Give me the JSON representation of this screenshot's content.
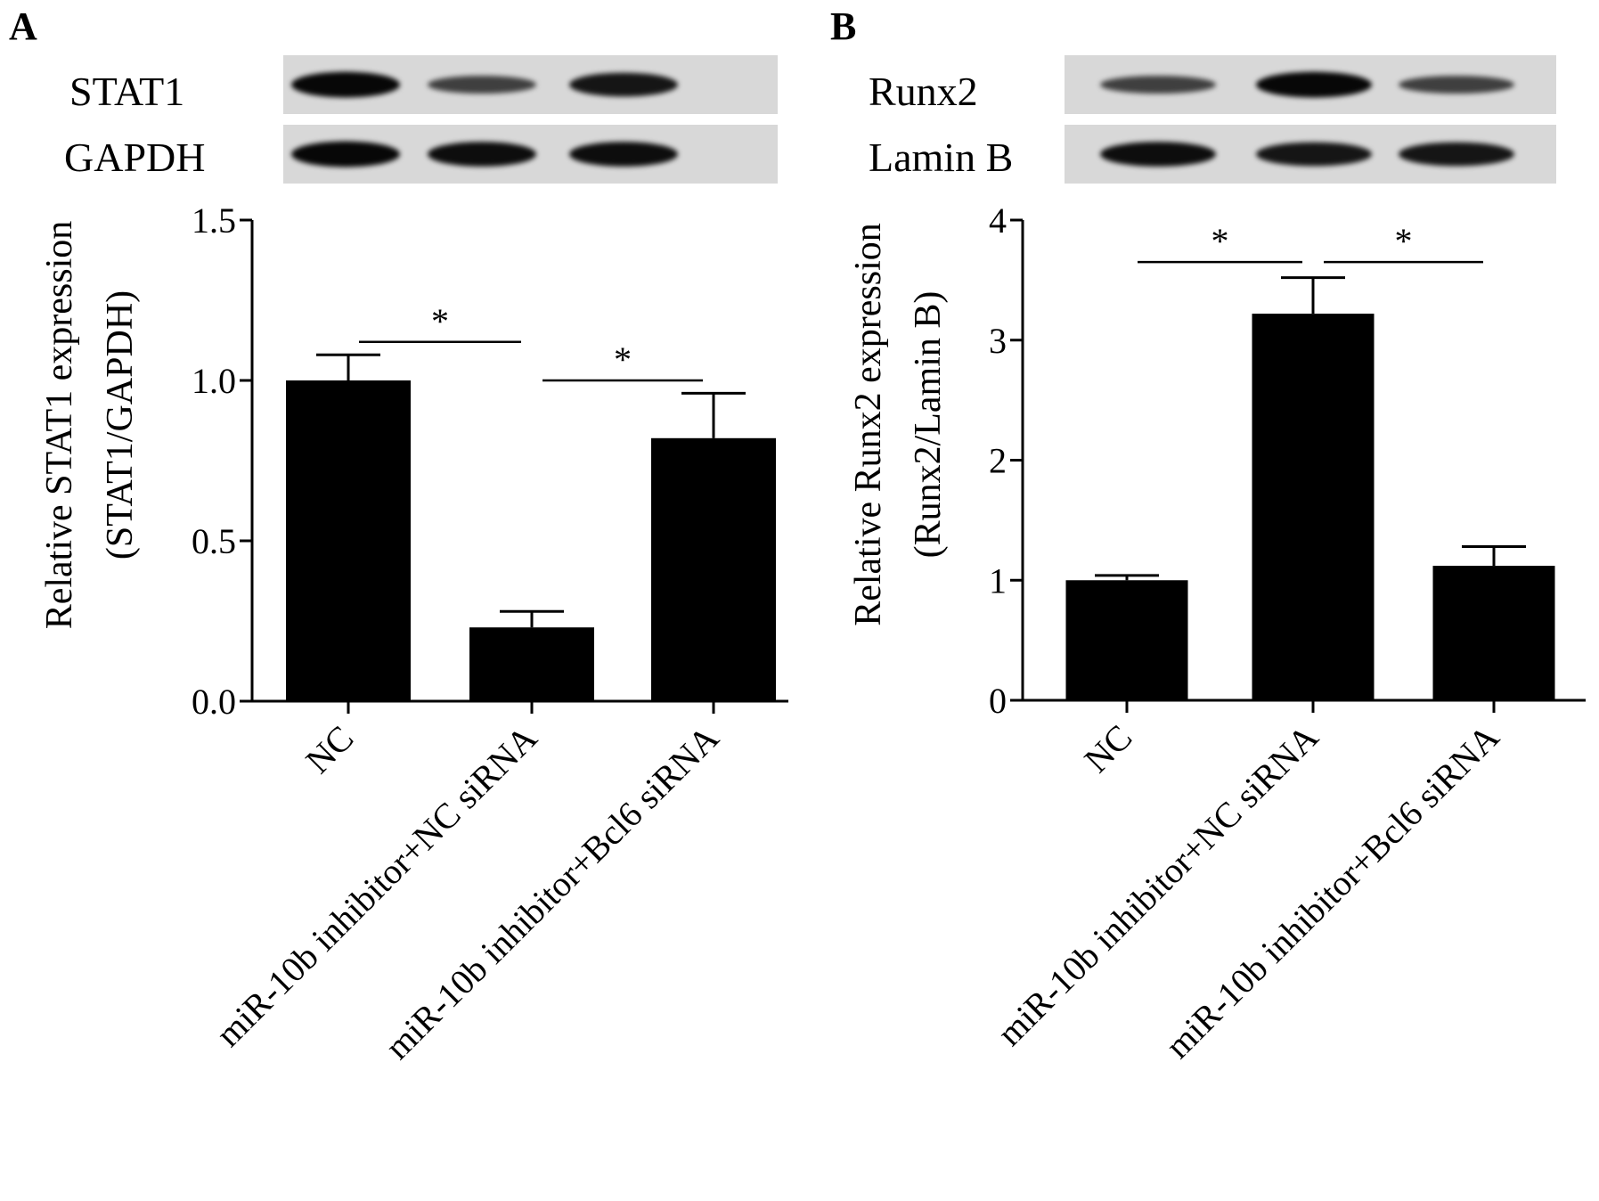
{
  "panels": [
    {
      "letter": "A",
      "blot": {
        "target_label": "STAT1",
        "control_label": "GAPDH",
        "target_band_intensity": [
          0.95,
          0.55,
          0.85
        ],
        "control_band_intensity": [
          0.95,
          0.9,
          0.9
        ]
      },
      "chart_data": {
        "type": "bar",
        "categories": [
          "NC",
          "miR-10b inhibitor+NC siRNA",
          "miR-10b inhibitor+Bcl6 siRNA"
        ],
        "values": [
          1.0,
          0.23,
          0.82
        ],
        "errors": [
          0.08,
          0.05,
          0.14
        ],
        "ylabel_line1": "Relative STAT1 expression",
        "ylabel_line2": "(STAT1/GAPDH)",
        "ylim": [
          0,
          1.5
        ],
        "yticks": [
          0.0,
          0.5,
          1.0,
          1.5
        ],
        "ytick_labels": [
          "0.0",
          "0.5",
          "1.0",
          "1.5"
        ],
        "grid": false,
        "bar_color": "#000000",
        "significance": [
          {
            "from": 0,
            "to": 1,
            "label": "*",
            "y": 1.12
          },
          {
            "from": 1,
            "to": 2,
            "label": "*",
            "y": 1.0
          }
        ]
      }
    },
    {
      "letter": "B",
      "blot": {
        "target_label": "Runx2",
        "control_label": "Lamin B",
        "target_band_intensity": [
          0.55,
          0.95,
          0.55
        ],
        "control_band_intensity": [
          0.9,
          0.85,
          0.85
        ]
      },
      "chart_data": {
        "type": "bar",
        "categories": [
          "NC",
          "miR-10b inhibitor+NC siRNA",
          "miR-10b inhibitor+Bcl6 siRNA"
        ],
        "values": [
          1.0,
          3.22,
          1.12
        ],
        "errors": [
          0.04,
          0.3,
          0.16
        ],
        "ylabel_line1": "Relative Runx2 expression",
        "ylabel_line2": "(Runx2/Lamin B)",
        "ylim": [
          0,
          4
        ],
        "yticks": [
          0,
          1,
          2,
          3,
          4
        ],
        "ytick_labels": [
          "0",
          "1",
          "2",
          "3",
          "4"
        ],
        "grid": false,
        "bar_color": "#000000",
        "significance": [
          {
            "from": 0,
            "to": 1,
            "label": "*",
            "y": 3.65
          },
          {
            "from": 1,
            "to": 2,
            "label": "*",
            "y": 3.65
          }
        ]
      }
    }
  ]
}
